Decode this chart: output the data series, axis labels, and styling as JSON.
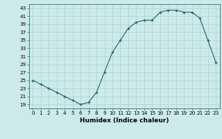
{
  "x": [
    0,
    1,
    2,
    3,
    4,
    5,
    6,
    7,
    8,
    9,
    10,
    11,
    12,
    13,
    14,
    15,
    16,
    17,
    18,
    19,
    20,
    21,
    22,
    23
  ],
  "y": [
    25,
    24,
    23,
    22,
    21,
    20,
    19,
    19.5,
    22,
    27,
    32,
    35,
    38,
    39.5,
    40,
    40,
    42,
    42.5,
    42.5,
    42,
    42,
    40.5,
    35,
    29.5
  ],
  "xlabel": "Humidex (Indice chaleur)",
  "xlim": [
    -0.5,
    23.5
  ],
  "ylim": [
    18,
    44
  ],
  "yticks": [
    19,
    21,
    23,
    25,
    27,
    29,
    31,
    33,
    35,
    37,
    39,
    41,
    43
  ],
  "xticks": [
    0,
    1,
    2,
    3,
    4,
    5,
    6,
    7,
    8,
    9,
    10,
    11,
    12,
    13,
    14,
    15,
    16,
    17,
    18,
    19,
    20,
    21,
    22,
    23
  ],
  "line_color": "#2d6e6e",
  "marker_color": "#2d6e6e",
  "bg_color": "#cceae8",
  "grid_color": "#aad4d2",
  "tick_fontsize": 5.2,
  "label_fontsize": 6.5
}
